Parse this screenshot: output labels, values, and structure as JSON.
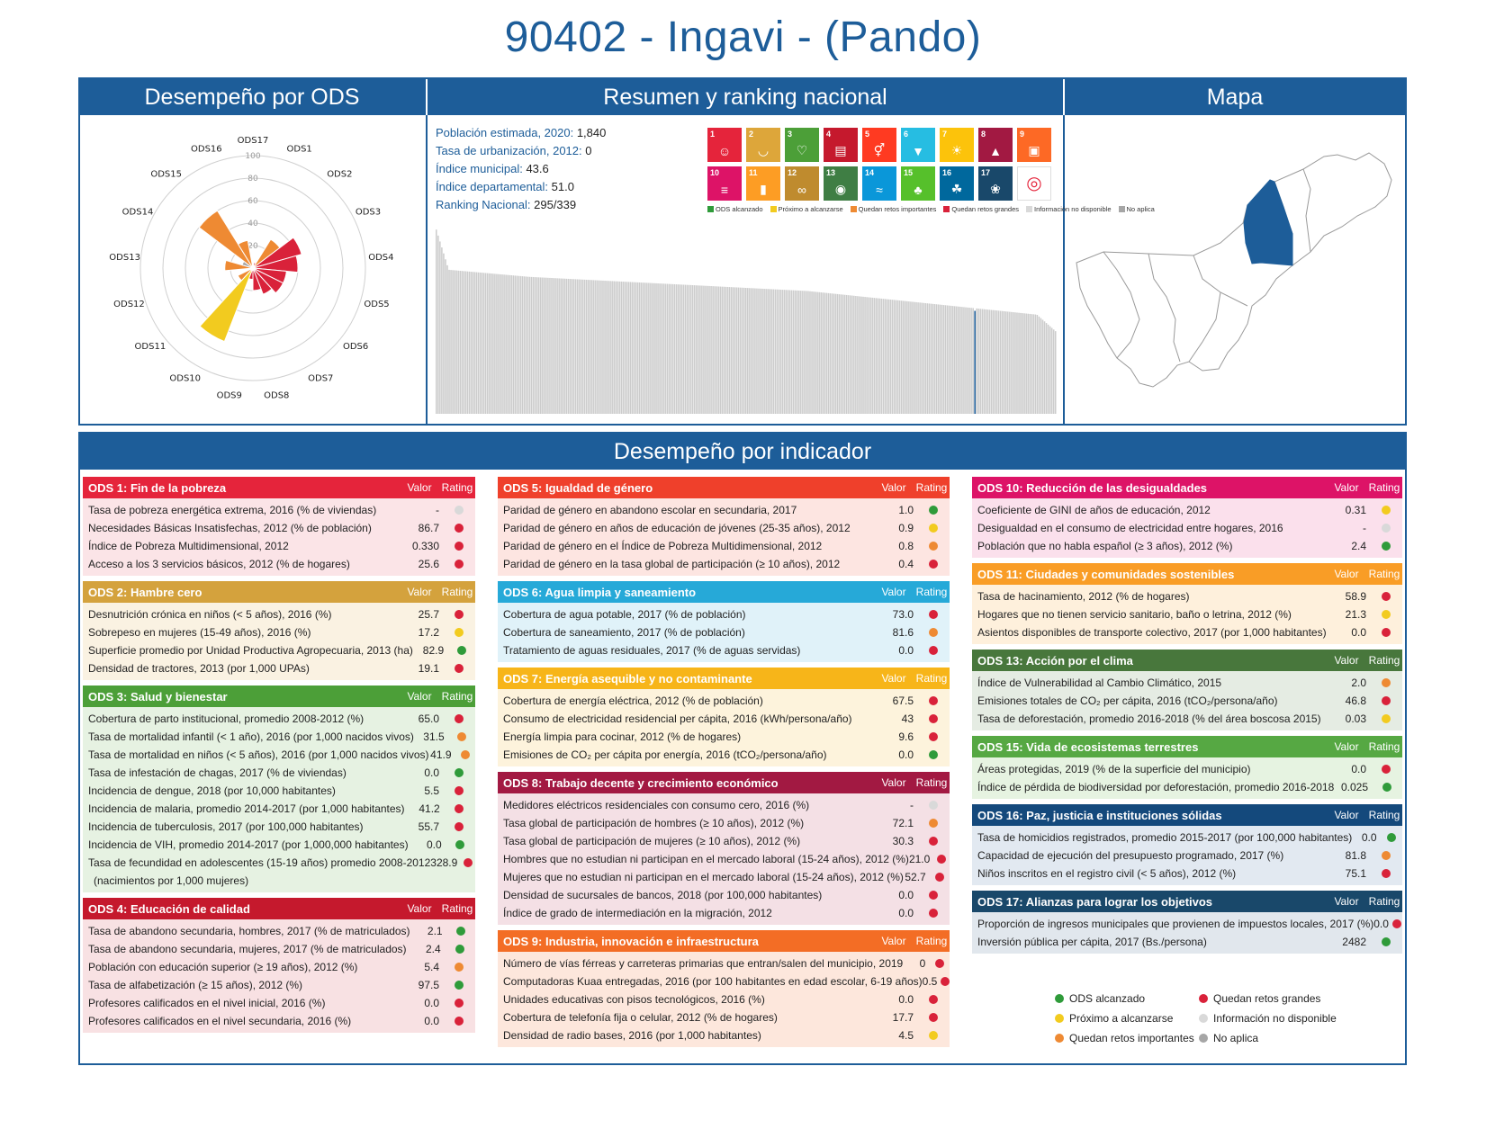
{
  "page": {
    "title": "90402 - Ingavi - (Pando)"
  },
  "panels": {
    "radar": "Desempeño por ODS",
    "summary": "Resumen y ranking nacional",
    "map": "Mapa",
    "indicators": "Desempeño por indicador"
  },
  "colors": {
    "accent": "#1d5d99",
    "rating": {
      "green": "#2f9b3a",
      "yellow": "#f2cb1f",
      "orange": "#ee8a33",
      "red": "#d9223a",
      "lightgray": "#d9d9d9",
      "gray": "#a6a6a6"
    }
  },
  "summary": [
    {
      "label": "Población estimada, 2020:",
      "value": "1,840"
    },
    {
      "label": "Tasa de urbanización, 2012:",
      "value": "0"
    },
    {
      "label": "Índice municipal:",
      "value": "43.6"
    },
    {
      "label": "Índice departamental:",
      "value": "51.0"
    },
    {
      "label": "Ranking Nacional:",
      "value": "295/339"
    }
  ],
  "sdg_tiles": [
    {
      "n": "1",
      "color": "#e5243b",
      "icon": "people-icon"
    },
    {
      "n": "2",
      "color": "#dda63a",
      "icon": "bowl-icon"
    },
    {
      "n": "3",
      "color": "#4c9f38",
      "icon": "heartbeat-icon"
    },
    {
      "n": "4",
      "color": "#c5192d",
      "icon": "book-icon"
    },
    {
      "n": "5",
      "color": "#ff3a21",
      "icon": "gender-icon"
    },
    {
      "n": "6",
      "color": "#26bde2",
      "icon": "water-drop-icon"
    },
    {
      "n": "7",
      "color": "#fcc30b",
      "icon": "sun-icon"
    },
    {
      "n": "8",
      "color": "#a21942",
      "icon": "growth-chart-icon"
    },
    {
      "n": "9",
      "color": "#fd6925",
      "icon": "cubes-icon"
    },
    {
      "n": "10",
      "color": "#dd1367",
      "icon": "equality-icon"
    },
    {
      "n": "11",
      "color": "#fd9d24",
      "icon": "city-icon"
    },
    {
      "n": "12",
      "color": "#bf8b2e",
      "icon": "infinity-icon"
    },
    {
      "n": "13",
      "color": "#3f7e44",
      "icon": "eye-globe-icon"
    },
    {
      "n": "14",
      "color": "#0a97d9",
      "icon": "fish-icon"
    },
    {
      "n": "15",
      "color": "#56c02b",
      "icon": "tree-icon"
    },
    {
      "n": "16",
      "color": "#00689d",
      "icon": "dove-icon"
    },
    {
      "n": "17",
      "color": "#19486a",
      "icon": "rings-icon"
    },
    {
      "n": "",
      "color": "#ffffff",
      "icon": "sdg-wheel-icon"
    }
  ],
  "sdg_legend": [
    {
      "label": "ODS alcanzado",
      "color": "#2f9b3a"
    },
    {
      "label": "Próximo a alcanzarse",
      "color": "#f2cb1f"
    },
    {
      "label": "Quedan retos importantes",
      "color": "#ee8a33"
    },
    {
      "label": "Quedan retos grandes",
      "color": "#d9223a"
    },
    {
      "label": "Información no disponible",
      "color": "#d9d9d9"
    },
    {
      "label": "No aplica",
      "color": "#a6a6a6"
    }
  ],
  "tile_colors_matched": {
    "1": "#e5243b",
    "2": "#dda63a",
    "3": "#4c9f38",
    "4": "#c5192d",
    "5": "#ff3a21",
    "6": "#26bde2",
    "7": "#fcc30b",
    "8": "#a21942",
    "9": "#fd6925"
  },
  "chart_data": [
    {
      "type": "polar-bar",
      "categories": [
        "ODS1",
        "ODS2",
        "ODS3",
        "ODS4",
        "ODS5",
        "ODS6",
        "ODS7",
        "ODS8",
        "ODS9",
        "ODS10",
        "ODS11",
        "ODS12",
        "ODS13",
        "ODS15",
        "ODS14",
        "ODS16",
        "ODS17"
      ],
      "category_order": [
        "ODS17",
        "ODS1",
        "ODS2",
        "ODS3",
        "ODS4",
        "ODS5",
        "ODS6",
        "ODS7",
        "ODS8",
        "ODS9",
        "ODS10",
        "ODS11",
        "ODS12",
        "ODS13",
        "ODS14",
        "ODS15",
        "ODS16"
      ],
      "values": {
        "ODS17": 0,
        "ODS1": 5,
        "ODS2": 30,
        "ODS3": 45,
        "ODS4": 40,
        "ODS5": 30,
        "ODS6": 30,
        "ODS7": 25,
        "ODS8": 20,
        "ODS9": 10,
        "ODS10": 70,
        "ODS11": 15,
        "ODS12": 0,
        "ODS13": 25,
        "ODS14": 10,
        "ODS15": 60,
        "ODS16": 25
      },
      "bar_colors": {
        "ODS17": "#d9223a",
        "ODS1": "#d9223a",
        "ODS2": "#ee8a33",
        "ODS3": "#d9223a",
        "ODS4": "#d9223a",
        "ODS5": "#d9223a",
        "ODS6": "#d9223a",
        "ODS7": "#d9223a",
        "ODS8": "#d9223a",
        "ODS9": "#d9223a",
        "ODS10": "#f2cb1f",
        "ODS11": "#ee8a33",
        "ODS12": "#a6a6a6",
        "ODS13": "#ee8a33",
        "ODS14": "#a6a6a6",
        "ODS15": "#ee8a33",
        "ODS16": "#ee8a33"
      },
      "ticks": [
        20,
        40,
        60,
        80,
        100
      ],
      "rlim": [
        0,
        100
      ],
      "grid": true
    },
    {
      "type": "bar",
      "description_values": "ranking of municipal index for 339 municipalities, descending",
      "n_bars": 339,
      "highlight_rank": 295,
      "highlight_value": 43.6,
      "start_value": 78,
      "plateau_value": 61,
      "mid_value": 52,
      "end_value": 35,
      "ylim": [
        0,
        80
      ],
      "bar_color": "#cccccc",
      "highlight_color": "#1d5d99"
    }
  ],
  "sections": [
    {
      "title": "ODS 1: Fin de la pobreza",
      "head_color": "#e5243b",
      "body_color": "#fbe4e7",
      "col_valor": "Valor",
      "col_rating": "Rating",
      "rows": [
        {
          "label": "Tasa de pobreza energética extrema, 2016 (% de viviendas)",
          "value": "-",
          "rating": "lightgray"
        },
        {
          "label": "Necesidades Básicas Insatisfechas, 2012 (% de población)",
          "value": "86.7",
          "rating": "red"
        },
        {
          "label": "Índice de Pobreza Multidimensional, 2012",
          "value": "0.330",
          "rating": "red"
        },
        {
          "label": "Acceso a los 3 servicios básicos, 2012 (% de hogares)",
          "value": "25.6",
          "rating": "red"
        }
      ]
    },
    {
      "title": "ODS 2: Hambre cero",
      "head_color": "#d4a23d",
      "body_color": "#faf2e2",
      "col_valor": "Valor",
      "col_rating": "Rating",
      "rows": [
        {
          "label": "Desnutrición crónica en niños (< 5 años), 2016 (%)",
          "value": "25.7",
          "rating": "red"
        },
        {
          "label": "Sobrepeso en mujeres (15-49 años), 2016 (%)",
          "value": "17.2",
          "rating": "yellow"
        },
        {
          "label": "Superficie promedio por Unidad Productiva Agropecuaria, 2013 (ha)",
          "value": "82.9",
          "rating": "green"
        },
        {
          "label": "Densidad de tractores, 2013 (por 1,000 UPAs)",
          "value": "19.1",
          "rating": "red"
        }
      ]
    },
    {
      "title": "ODS 3: Salud y bienestar",
      "head_color": "#4c9f38",
      "body_color": "#e6f2e2",
      "col_valor": "Valor",
      "col_rating": "Rating",
      "rows": [
        {
          "label": "Cobertura de parto institucional, promedio 2008-2012 (%)",
          "value": "65.0",
          "rating": "red"
        },
        {
          "label": "Tasa de mortalidad infantil (< 1 año), 2016 (por 1,000 nacidos vivos)",
          "value": "31.5",
          "rating": "orange"
        },
        {
          "label": "Tasa de mortalidad en niños (< 5 años), 2016 (por 1,000 nacidos vivos)",
          "value": "41.9",
          "rating": "orange"
        },
        {
          "label": "Tasa de infestación de chagas, 2017 (% de viviendas)",
          "value": "0.0",
          "rating": "green"
        },
        {
          "label": "Incidencia de dengue, 2018 (por 10,000 habitantes)",
          "value": "5.5",
          "rating": "red"
        },
        {
          "label": "Incidencia de malaria, promedio 2014-2017 (por 1,000 habitantes)",
          "value": "41.2",
          "rating": "red"
        },
        {
          "label": "Incidencia de tuberculosis, 2017 (por 100,000 habitantes)",
          "value": "55.7",
          "rating": "red"
        },
        {
          "label": "Incidencia de VIH, promedio 2014-2017 (por 1,000,000 habitantes)",
          "value": "0.0",
          "rating": "green"
        },
        {
          "label": "Tasa de fecundidad en adolescentes (15-19 años) promedio 2008-2012",
          "value": "328.9",
          "rating": "red"
        },
        {
          "label": "(nacimientos por 1,000 mujeres)",
          "value": "",
          "rating": ""
        }
      ]
    },
    {
      "title": "ODS 4: Educación de calidad",
      "head_color": "#c5192d",
      "body_color": "#f8e1e3",
      "col_valor": "Valor",
      "col_rating": "Rating",
      "rows": [
        {
          "label": "Tasa de abandono secundaria, hombres, 2017 (% de matriculados)",
          "value": "2.1",
          "rating": "green"
        },
        {
          "label": "Tasa de abandono secundaria, mujeres, 2017 (% de matriculados)",
          "value": "2.4",
          "rating": "green"
        },
        {
          "label": "Población con educación superior (≥ 19 años), 2012 (%)",
          "value": "5.4",
          "rating": "orange"
        },
        {
          "label": "Tasa de alfabetización (≥ 15 años), 2012 (%)",
          "value": "97.5",
          "rating": "green"
        },
        {
          "label": "Profesores calificados en el nivel inicial, 2016 (%)",
          "value": "0.0",
          "rating": "red"
        },
        {
          "label": "Profesores calificados en el nivel secundaria, 2016 (%)",
          "value": "0.0",
          "rating": "red"
        }
      ]
    },
    {
      "title": "ODS 5: Igualdad de género",
      "head_color": "#ef402b",
      "body_color": "#fde5e1",
      "col_valor": "Valor",
      "col_rating": "Rating",
      "rows": [
        {
          "label": "Paridad de género en abandono escolar en secundaria, 2017",
          "value": "1.0",
          "rating": "green"
        },
        {
          "label": "Paridad de género en años de educación de jóvenes (25-35 años), 2012",
          "value": "0.9",
          "rating": "yellow"
        },
        {
          "label": "Paridad de género en el Índice de Pobreza Multidimensional, 2012",
          "value": "0.8",
          "rating": "orange"
        },
        {
          "label": "Paridad de género en la tasa global de participación (≥ 10 años), 2012",
          "value": "0.4",
          "rating": "red"
        }
      ]
    },
    {
      "title": "ODS 6: Agua limpia y saneamiento",
      "head_color": "#26a9d8",
      "body_color": "#e0f2f9",
      "col_valor": "Valor",
      "col_rating": "Rating",
      "rows": [
        {
          "label": "Cobertura de agua potable, 2017 (% de población)",
          "value": "73.0",
          "rating": "red"
        },
        {
          "label": "Cobertura de saneamiento, 2017 (% de población)",
          "value": "81.6",
          "rating": "orange"
        },
        {
          "label": "Tratamiento de aguas residuales, 2017 (% de aguas servidas)",
          "value": "0.0",
          "rating": "red"
        }
      ]
    },
    {
      "title": "ODS 7: Energía asequible y no contaminante",
      "head_color": "#f7b519",
      "body_color": "#fdf3dc",
      "col_valor": "Valor",
      "col_rating": "Rating",
      "rows": [
        {
          "label": "Cobertura de energía eléctrica, 2012 (% de población)",
          "value": "67.5",
          "rating": "red"
        },
        {
          "label": "Consumo de electricidad residencial per cápita, 2016 (kWh/persona/año)",
          "value": "43",
          "rating": "red"
        },
        {
          "label": "Energía limpia para cocinar, 2012 (% de hogares)",
          "value": "9.6",
          "rating": "red"
        },
        {
          "label": "Emisiones de CO₂ per cápita por energía, 2016 (tCO₂/persona/año)",
          "value": "0.0",
          "rating": "green"
        }
      ]
    },
    {
      "title": "ODS 8: Trabajo decente y crecimiento económico",
      "head_color": "#a21942",
      "body_color": "#f4e0e5",
      "col_valor": "Valor",
      "col_rating": "Rating",
      "rows": [
        {
          "label": "Medidores eléctricos residenciales con consumo cero, 2016 (%)",
          "value": "-",
          "rating": "lightgray"
        },
        {
          "label": "Tasa global de participación de hombres (≥ 10 años), 2012 (%)",
          "value": "72.1",
          "rating": "orange"
        },
        {
          "label": "Tasa global de participación de mujeres (≥ 10 años), 2012 (%)",
          "value": "30.3",
          "rating": "red"
        },
        {
          "label": "Hombres que no estudian ni participan en el mercado laboral (15-24 años), 2012 (%)",
          "value": "21.0",
          "rating": "red"
        },
        {
          "label": "Mujeres que no estudian ni participan en el mercado laboral (15-24 años), 2012 (%)",
          "value": "52.7",
          "rating": "red"
        },
        {
          "label": "Densidad de sucursales de bancos, 2018 (por 100,000 habitantes)",
          "value": "0.0",
          "rating": "red"
        },
        {
          "label": "Índice de grado de intermediación en la migración, 2012",
          "value": "0.0",
          "rating": "red"
        }
      ]
    },
    {
      "title": "ODS 9: Industria, innovación e infraestructura",
      "head_color": "#f36d25",
      "body_color": "#fde7dc",
      "col_valor": "Valor",
      "col_rating": "Rating",
      "rows": [
        {
          "label": "Número de vías férreas y carreteras primarias que entran/salen del municipio, 2019",
          "value": "0",
          "rating": "red"
        },
        {
          "label": "Computadoras Kuaa entregadas, 2016 (por 100 habitantes en edad escolar, 6-19 años)",
          "value": "0.5",
          "rating": "red"
        },
        {
          "label": "Unidades educativas con pisos tecnológicos, 2016 (%)",
          "value": "0.0",
          "rating": "red"
        },
        {
          "label": "Cobertura de telefonía fija o celular, 2012 (% de hogares)",
          "value": "17.7",
          "rating": "red"
        },
        {
          "label": "Densidad de radio bases, 2016 (por 1,000 habitantes)",
          "value": "4.5",
          "rating": "yellow"
        }
      ]
    },
    {
      "title": "ODS 10: Reducción de las desigualdades",
      "head_color": "#dd1367",
      "body_color": "#fbe0ec",
      "col_valor": "Valor",
      "col_rating": "Rating",
      "rows": [
        {
          "label": "Coeficiente de GINI de años de educación, 2012",
          "value": "0.31",
          "rating": "yellow"
        },
        {
          "label": "Desigualdad en el consumo de electricidad entre hogares, 2016",
          "value": "-",
          "rating": "lightgray"
        },
        {
          "label": "Población que no habla español (≥ 3 años), 2012 (%)",
          "value": "2.4",
          "rating": "green"
        }
      ]
    },
    {
      "title": "ODS 11: Ciudades y comunidades sostenibles",
      "head_color": "#f99d26",
      "body_color": "#fef0dc",
      "col_valor": "Valor",
      "col_rating": "Rating",
      "rows": [
        {
          "label": "Tasa de hacinamiento, 2012 (% de hogares)",
          "value": "58.9",
          "rating": "red"
        },
        {
          "label": "Hogares que no tienen servicio sanitario, baño o letrina, 2012 (%)",
          "value": "21.3",
          "rating": "yellow"
        },
        {
          "label": "Asientos disponibles de transporte colectivo, 2017 (por 1,000 habitantes)",
          "value": "0.0",
          "rating": "red"
        }
      ]
    },
    {
      "title": "ODS 13: Acción por el clima",
      "head_color": "#48773c",
      "body_color": "#e5ece3",
      "col_valor": "Valor",
      "col_rating": "Rating",
      "rows": [
        {
          "label": "Índice de Vulnerabilidad al Cambio Climático, 2015",
          "value": "2.0",
          "rating": "orange"
        },
        {
          "label": "Emisiones totales de CO₂ per cápita, 2016 (tCO₂/persona/año)",
          "value": "46.8",
          "rating": "red"
        },
        {
          "label": "Tasa de deforestación, promedio 2016-2018 (% del área boscosa 2015)",
          "value": "0.03",
          "rating": "yellow"
        }
      ]
    },
    {
      "title": "ODS 15: Vida de ecosistemas terrestres",
      "head_color": "#56a843",
      "body_color": "#e6f3e1",
      "col_valor": "Valor",
      "col_rating": "Rating",
      "rows": [
        {
          "label": "Áreas protegidas, 2019 (% de la superficie del municipio)",
          "value": "0.0",
          "rating": "red"
        },
        {
          "label": "Índice de pérdida de biodiversidad por deforestación, promedio 2016-2018",
          "value": "0.025",
          "rating": "green"
        }
      ]
    },
    {
      "title": "ODS 16: Paz, justicia e instituciones sólidas",
      "head_color": "#14497c",
      "body_color": "#e2e9f1",
      "col_valor": "Valor",
      "col_rating": "Rating",
      "rows": [
        {
          "label": "Tasa de homicidios registrados, promedio 2015-2017 (por 100,000 habitantes)",
          "value": "0.0",
          "rating": "green"
        },
        {
          "label": "Capacidad de ejecución del presupuesto programado, 2017 (%)",
          "value": "81.8",
          "rating": "orange"
        },
        {
          "label": "Niños inscritos en el registro civil (< 5 años), 2012 (%)",
          "value": "75.1",
          "rating": "red"
        }
      ]
    },
    {
      "title": "ODS 17: Alianzas para lograr los objetivos",
      "head_color": "#19486a",
      "body_color": "#e1e7ed",
      "col_valor": "Valor",
      "col_rating": "Rating",
      "rows": [
        {
          "label": "Proporción de ingresos municipales que provienen de impuestos locales, 2017 (%)",
          "value": "0.0",
          "rating": "red"
        },
        {
          "label": "Inversión pública per cápita, 2017 (Bs./persona)",
          "value": "2482",
          "rating": "green"
        }
      ]
    }
  ],
  "legend": [
    {
      "label": "ODS alcanzado",
      "rating": "green"
    },
    {
      "label": "Quedan retos grandes",
      "rating": "red"
    },
    {
      "label": "Próximo a alcanzarse",
      "rating": "yellow"
    },
    {
      "label": "Información no disponible",
      "rating": "lightgray"
    },
    {
      "label": "Quedan retos importantes",
      "rating": "orange"
    },
    {
      "label": "No aplica",
      "rating": "gray"
    }
  ]
}
